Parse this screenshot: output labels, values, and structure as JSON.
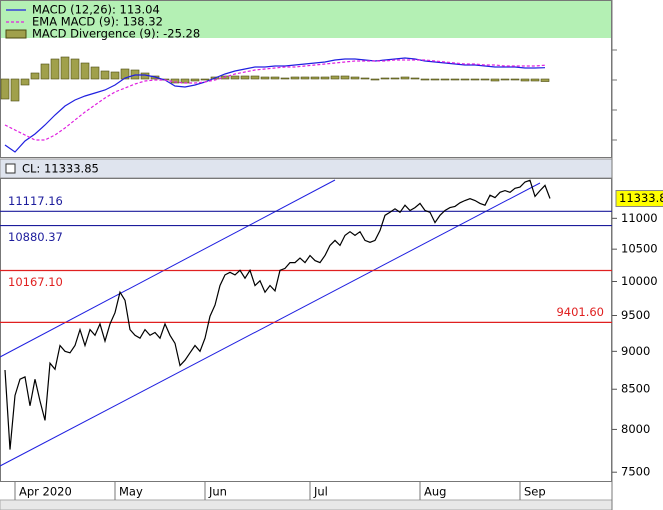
{
  "chart_data": [
    {
      "type": "line",
      "xlim": [
        -1,
        121.4
      ],
      "ylim": [
        -790,
        410
      ],
      "x": [
        0,
        2,
        4,
        6,
        8,
        10,
        12,
        14,
        16,
        18,
        20,
        22,
        24,
        26,
        28,
        30,
        32,
        34,
        36,
        38,
        40,
        42,
        44,
        46,
        48,
        50,
        52,
        54,
        56,
        58,
        60,
        62,
        64,
        66,
        68,
        70,
        72,
        74,
        76,
        78,
        80,
        82,
        84,
        86,
        88,
        90,
        92,
        94,
        96,
        98,
        100,
        102,
        104,
        106,
        108
      ],
      "series": [
        {
          "name": "MACD (12,26): 113.04",
          "color": "#2020e0",
          "style": "solid",
          "values": [
            -660,
            -730,
            -620,
            -550,
            -460,
            -360,
            -270,
            -210,
            -170,
            -140,
            -110,
            -60,
            10,
            40,
            40,
            20,
            -10,
            -70,
            -80,
            -60,
            -30,
            10,
            50,
            80,
            100,
            120,
            120,
            130,
            130,
            140,
            150,
            160,
            170,
            190,
            200,
            200,
            190,
            180,
            190,
            200,
            210,
            200,
            180,
            170,
            160,
            150,
            140,
            140,
            130,
            120,
            120,
            120,
            110,
            110,
            113.04
          ]
        },
        {
          "name": "EMA MACD (9): 138.32",
          "color": "#e020e0",
          "style": "dashed",
          "values": [
            -460,
            -510,
            -560,
            -610,
            -610,
            -560,
            -490,
            -410,
            -330,
            -260,
            -190,
            -130,
            -90,
            -50,
            -20,
            -10,
            -10,
            -30,
            -40,
            -40,
            -30,
            -10,
            20,
            50,
            70,
            90,
            100,
            110,
            120,
            120,
            130,
            140,
            150,
            160,
            170,
            180,
            180,
            180,
            180,
            190,
            190,
            190,
            190,
            180,
            170,
            160,
            150,
            150,
            140,
            140,
            130,
            130,
            130,
            130,
            138.32
          ]
        },
        {
          "name": "MACD Divergence (9): -25.28",
          "color": "#a0a04c",
          "style": "bar",
          "values": [
            -200,
            -220,
            -60,
            60,
            150,
            200,
            220,
            200,
            160,
            120,
            80,
            70,
            100,
            90,
            60,
            30,
            0,
            -40,
            -40,
            -20,
            0,
            20,
            30,
            30,
            30,
            30,
            20,
            20,
            10,
            20,
            20,
            20,
            20,
            30,
            30,
            20,
            10,
            0,
            10,
            10,
            20,
            10,
            -10,
            -10,
            -10,
            -10,
            -10,
            -10,
            -10,
            -20,
            -10,
            -10,
            -20,
            -20,
            -25.28
          ]
        }
      ]
    },
    {
      "type": "line",
      "header": "CL: 11333.85",
      "log": true,
      "color": "#000000",
      "xlim": [
        -1,
        121.4
      ],
      "ylim": [
        7390,
        11690
      ],
      "yticks": [
        7500,
        8000,
        8500,
        9000,
        9500,
        10000,
        10500,
        11000
      ],
      "xticks": [
        {
          "value": 2,
          "label": "Apr 2020"
        },
        {
          "value": 22,
          "label": "May"
        },
        {
          "value": 40,
          "label": "Jun"
        },
        {
          "value": 61,
          "label": "Jul"
        },
        {
          "value": 83,
          "label": "Aug"
        },
        {
          "value": 103,
          "label": "Sep"
        }
      ],
      "hlines": [
        {
          "value": 11117.16,
          "label": "11117.16",
          "color": "#1c1c9c",
          "side": "left",
          "position": "above"
        },
        {
          "value": 10880.37,
          "label": "10880.37",
          "color": "#1c1c9c",
          "side": "left",
          "position": "below"
        },
        {
          "value": 10167.1,
          "label": "10167.10",
          "color": "#e02020",
          "side": "left",
          "position": "below"
        },
        {
          "value": 9401.6,
          "label": "9401.60",
          "color": "#e02020",
          "side": "right",
          "position": "above"
        }
      ],
      "x": [
        0,
        1,
        2,
        3,
        4,
        5,
        6,
        7,
        8,
        9,
        10,
        11,
        12,
        13,
        14,
        15,
        16,
        17,
        18,
        19,
        20,
        21,
        22,
        23,
        24,
        25,
        26,
        27,
        28,
        29,
        30,
        31,
        32,
        33,
        34,
        35,
        36,
        37,
        38,
        39,
        40,
        41,
        42,
        43,
        44,
        45,
        46,
        47,
        48,
        49,
        50,
        51,
        52,
        53,
        54,
        55,
        56,
        57,
        58,
        59,
        60,
        61,
        62,
        63,
        64,
        65,
        66,
        67,
        68,
        69,
        70,
        71,
        72,
        73,
        74,
        75,
        76,
        77,
        78,
        79,
        80,
        81,
        82,
        83,
        84,
        85,
        86,
        87,
        88,
        89,
        90,
        91,
        92,
        93,
        94,
        95,
        96,
        97,
        98,
        99,
        100,
        101,
        102,
        103,
        104,
        105,
        106,
        107,
        108,
        109
      ],
      "values": [
        8750,
        7760,
        8420,
        8630,
        8660,
        8290,
        8630,
        8350,
        8110,
        8840,
        8760,
        9080,
        9000,
        8980,
        9080,
        9300,
        9080,
        9300,
        9220,
        9380,
        9140,
        9380,
        9540,
        9840,
        9720,
        9300,
        9220,
        9180,
        9300,
        9220,
        9260,
        9180,
        9380,
        9220,
        9110,
        8810,
        8880,
        8980,
        9080,
        9000,
        9180,
        9490,
        9650,
        9940,
        10100,
        10140,
        10100,
        10170,
        10050,
        10170,
        9940,
        10010,
        9840,
        9940,
        9860,
        10170,
        10200,
        10290,
        10290,
        10360,
        10290,
        10400,
        10320,
        10290,
        10400,
        10560,
        10640,
        10560,
        10720,
        10780,
        10720,
        10780,
        10640,
        10610,
        10640,
        10800,
        11050,
        11100,
        11160,
        11100,
        11220,
        11130,
        11180,
        11250,
        11130,
        11100,
        10930,
        11050,
        11130,
        11180,
        11200,
        11260,
        11300,
        11330,
        11300,
        11250,
        11220,
        11390,
        11350,
        11440,
        11470,
        11440,
        11510,
        11530,
        11620,
        11650,
        11370,
        11470,
        11560,
        11333.85
      ]
    }
  ]
}
